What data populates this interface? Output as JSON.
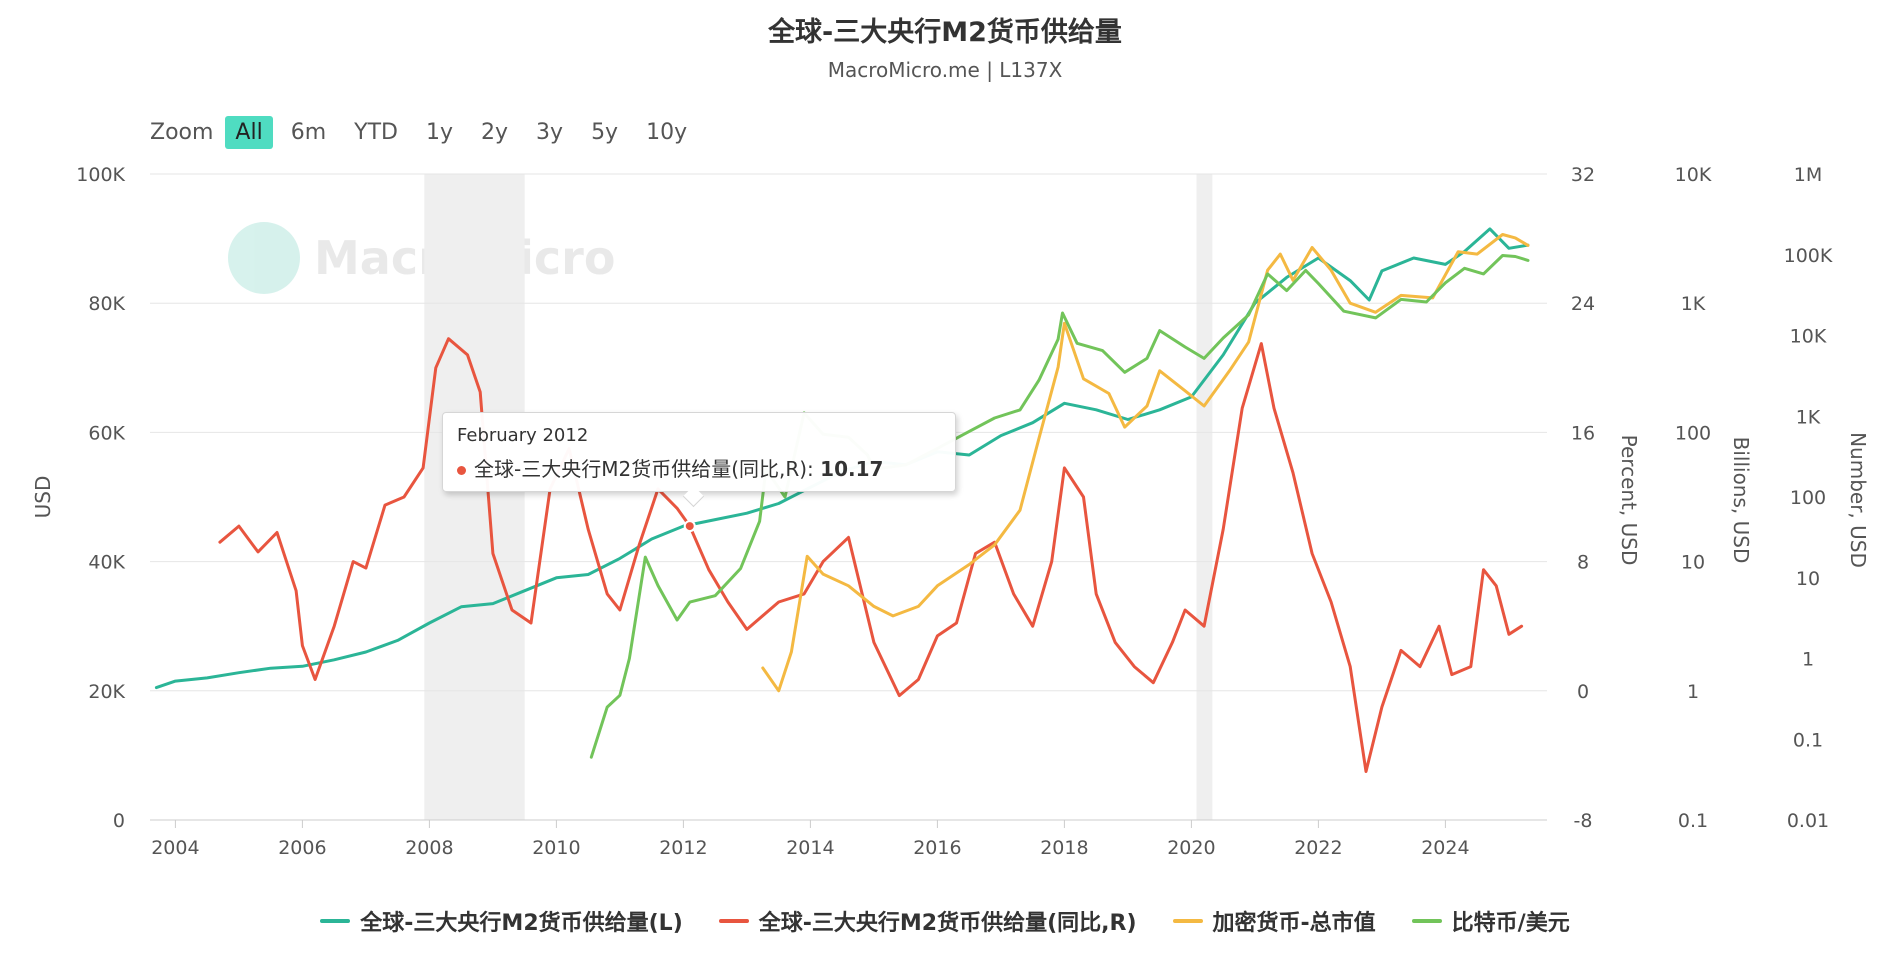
{
  "title": "全球-三大央行M2货币供给量",
  "subtitle": "MacroMicro.me | L137X",
  "watermark": "MacroMicro",
  "zoom": {
    "label": "Zoom",
    "options": [
      "All",
      "6m",
      "YTD",
      "1y",
      "2y",
      "3y",
      "5y",
      "10y"
    ],
    "active": "All"
  },
  "tooltip": {
    "date": "February 2012",
    "series": "全球-三大央行M2货币供给量(同比,R):",
    "value": "10.17"
  },
  "colors": {
    "m2": "#2bb597",
    "yoy": "#e8553f",
    "crypto": "#f4b942",
    "btc": "#72c45a",
    "recession": "#efefef"
  },
  "chart_data": {
    "type": "line",
    "title": "全球-三大央行M2货币供给量",
    "x_ticks": [
      "2004",
      "2006",
      "2008",
      "2010",
      "2012",
      "2014",
      "2016",
      "2018",
      "2020",
      "2022",
      "2024"
    ],
    "xlim": [
      2003.6,
      2025.6
    ],
    "recessions": [
      [
        2007.92,
        2009.5
      ],
      [
        2020.08,
        2020.33
      ]
    ],
    "axes": {
      "left": {
        "label": "USD",
        "range": [
          0,
          100000
        ],
        "ticks": [
          "0",
          "20K",
          "40K",
          "60K",
          "80K",
          "100K"
        ]
      },
      "right1": {
        "label": "Percent, USD",
        "range": [
          -8,
          32
        ],
        "ticks": [
          "-8",
          "0",
          "8",
          "16",
          "24",
          "32"
        ]
      },
      "right2": {
        "label": "Billions, USD",
        "scale": "log",
        "range": [
          0.1,
          10000
        ],
        "ticks": [
          "0.1",
          "1",
          "10",
          "100",
          "1K",
          "10K"
        ]
      },
      "right3": {
        "label": "Number, USD",
        "scale": "log",
        "range": [
          0.01,
          1000000
        ],
        "ticks": [
          "0.01",
          "0.1",
          "1",
          "10",
          "100",
          "1K",
          "10K",
          "100K",
          "1M"
        ]
      }
    },
    "series": [
      {
        "name": "全球-三大央行M2货币供给量(L)",
        "axis": "left",
        "color": "#2bb597",
        "points": [
          [
            2003.7,
            20500
          ],
          [
            2004.0,
            21500
          ],
          [
            2004.5,
            22000
          ],
          [
            2005.0,
            22800
          ],
          [
            2005.5,
            23500
          ],
          [
            2006.0,
            23800
          ],
          [
            2006.5,
            24800
          ],
          [
            2007.0,
            26000
          ],
          [
            2007.5,
            27800
          ],
          [
            2008.0,
            30500
          ],
          [
            2008.5,
            33000
          ],
          [
            2009.0,
            33500
          ],
          [
            2009.5,
            35500
          ],
          [
            2010.0,
            37500
          ],
          [
            2010.5,
            38000
          ],
          [
            2011.0,
            40500
          ],
          [
            2011.5,
            43500
          ],
          [
            2012.0,
            45500
          ],
          [
            2012.5,
            46500
          ],
          [
            2013.0,
            47500
          ],
          [
            2013.5,
            49000
          ],
          [
            2014.0,
            51500
          ],
          [
            2014.5,
            54000
          ],
          [
            2015.0,
            55500
          ],
          [
            2015.5,
            55000
          ],
          [
            2016.0,
            57000
          ],
          [
            2016.5,
            56500
          ],
          [
            2017.0,
            59500
          ],
          [
            2017.5,
            61500
          ],
          [
            2018.0,
            64500
          ],
          [
            2018.5,
            63500
          ],
          [
            2019.0,
            62000
          ],
          [
            2019.5,
            63500
          ],
          [
            2020.0,
            65500
          ],
          [
            2020.5,
            72000
          ],
          [
            2021.0,
            80000
          ],
          [
            2021.5,
            84000
          ],
          [
            2022.0,
            87000
          ],
          [
            2022.5,
            83500
          ],
          [
            2022.8,
            80500
          ],
          [
            2023.0,
            85000
          ],
          [
            2023.5,
            87000
          ],
          [
            2024.0,
            86000
          ],
          [
            2024.3,
            88000
          ],
          [
            2024.7,
            91500
          ],
          [
            2025.0,
            88500
          ],
          [
            2025.3,
            89000
          ]
        ]
      },
      {
        "name": "全球-三大央行M2货币供给量(同比,R)",
        "axis": "right1",
        "color": "#e8553f",
        "points": [
          [
            2004.7,
            9.2
          ],
          [
            2005.0,
            10.2
          ],
          [
            2005.3,
            8.6
          ],
          [
            2005.6,
            9.8
          ],
          [
            2005.9,
            6.2
          ],
          [
            2006.0,
            2.8
          ],
          [
            2006.2,
            0.7
          ],
          [
            2006.5,
            4.0
          ],
          [
            2006.8,
            8.0
          ],
          [
            2007.0,
            7.6
          ],
          [
            2007.3,
            11.5
          ],
          [
            2007.6,
            12.0
          ],
          [
            2007.9,
            13.8
          ],
          [
            2008.1,
            20.0
          ],
          [
            2008.3,
            21.8
          ],
          [
            2008.6,
            20.8
          ],
          [
            2008.8,
            18.5
          ],
          [
            2009.0,
            8.5
          ],
          [
            2009.3,
            5.0
          ],
          [
            2009.6,
            4.2
          ],
          [
            2009.9,
            12.5
          ],
          [
            2010.2,
            15.0
          ],
          [
            2010.5,
            10.0
          ],
          [
            2010.8,
            6.0
          ],
          [
            2011.0,
            5.0
          ],
          [
            2011.3,
            9.0
          ],
          [
            2011.6,
            12.5
          ],
          [
            2011.9,
            11.3
          ],
          [
            2012.1,
            10.2
          ],
          [
            2012.4,
            7.5
          ],
          [
            2012.7,
            5.5
          ],
          [
            2013.0,
            3.8
          ],
          [
            2013.5,
            5.5
          ],
          [
            2013.9,
            6.0
          ],
          [
            2014.2,
            8.0
          ],
          [
            2014.6,
            9.5
          ],
          [
            2015.0,
            3.0
          ],
          [
            2015.4,
            -0.3
          ],
          [
            2015.7,
            0.7
          ],
          [
            2016.0,
            3.4
          ],
          [
            2016.3,
            4.2
          ],
          [
            2016.6,
            8.5
          ],
          [
            2016.9,
            9.2
          ],
          [
            2017.2,
            6.0
          ],
          [
            2017.5,
            4.0
          ],
          [
            2017.8,
            8.0
          ],
          [
            2018.0,
            13.8
          ],
          [
            2018.3,
            12.0
          ],
          [
            2018.5,
            6.0
          ],
          [
            2018.8,
            3.0
          ],
          [
            2019.1,
            1.5
          ],
          [
            2019.4,
            0.5
          ],
          [
            2019.7,
            3.0
          ],
          [
            2019.9,
            5.0
          ],
          [
            2020.2,
            4.0
          ],
          [
            2020.5,
            10.0
          ],
          [
            2020.8,
            17.5
          ],
          [
            2021.1,
            21.5
          ],
          [
            2021.3,
            17.5
          ],
          [
            2021.6,
            13.5
          ],
          [
            2021.9,
            8.5
          ],
          [
            2022.2,
            5.5
          ],
          [
            2022.5,
            1.5
          ],
          [
            2022.75,
            -5.0
          ],
          [
            2023.0,
            -1.0
          ],
          [
            2023.3,
            2.5
          ],
          [
            2023.6,
            1.5
          ],
          [
            2023.9,
            4.0
          ],
          [
            2024.1,
            1.0
          ],
          [
            2024.4,
            1.5
          ],
          [
            2024.6,
            7.5
          ],
          [
            2024.8,
            6.5
          ],
          [
            2025.0,
            3.5
          ],
          [
            2025.2,
            4.0
          ]
        ]
      },
      {
        "name": "加密货币-总市值",
        "axis": "right2",
        "color": "#f4b942",
        "points": [
          [
            2013.25,
            1.5
          ],
          [
            2013.5,
            1.0
          ],
          [
            2013.7,
            2.0
          ],
          [
            2013.95,
            11.0
          ],
          [
            2014.2,
            8.0
          ],
          [
            2014.6,
            6.5
          ],
          [
            2015.0,
            4.5
          ],
          [
            2015.3,
            3.8
          ],
          [
            2015.7,
            4.5
          ],
          [
            2016.0,
            6.5
          ],
          [
            2016.5,
            9.5
          ],
          [
            2016.9,
            13.5
          ],
          [
            2017.3,
            25.0
          ],
          [
            2017.6,
            90.0
          ],
          [
            2017.9,
            320.0
          ],
          [
            2018.0,
            700.0
          ],
          [
            2018.3,
            260.0
          ],
          [
            2018.7,
            200.0
          ],
          [
            2018.95,
            110.0
          ],
          [
            2019.3,
            160.0
          ],
          [
            2019.5,
            300.0
          ],
          [
            2019.9,
            210.0
          ],
          [
            2020.2,
            160.0
          ],
          [
            2020.6,
            300.0
          ],
          [
            2020.9,
            500.0
          ],
          [
            2021.2,
            1800.0
          ],
          [
            2021.4,
            2400.0
          ],
          [
            2021.6,
            1500.0
          ],
          [
            2021.9,
            2700.0
          ],
          [
            2022.2,
            1800.0
          ],
          [
            2022.5,
            1000.0
          ],
          [
            2022.9,
            850.0
          ],
          [
            2023.3,
            1150.0
          ],
          [
            2023.8,
            1100.0
          ],
          [
            2024.2,
            2500.0
          ],
          [
            2024.5,
            2400.0
          ],
          [
            2024.9,
            3400.0
          ],
          [
            2025.1,
            3200.0
          ],
          [
            2025.3,
            2800.0
          ]
        ]
      },
      {
        "name": "比特币/美元",
        "axis": "right3",
        "color": "#72c45a",
        "points": [
          [
            2010.55,
            0.06
          ],
          [
            2010.8,
            0.25
          ],
          [
            2011.0,
            0.35
          ],
          [
            2011.15,
            1.0
          ],
          [
            2011.4,
            18.0
          ],
          [
            2011.6,
            8.0
          ],
          [
            2011.9,
            3.0
          ],
          [
            2012.1,
            5.0
          ],
          [
            2012.5,
            6.0
          ],
          [
            2012.9,
            13.0
          ],
          [
            2013.2,
            50.0
          ],
          [
            2013.3,
            220.0
          ],
          [
            2013.6,
            100.0
          ],
          [
            2013.9,
            1100.0
          ],
          [
            2014.2,
            600.0
          ],
          [
            2014.6,
            550.0
          ],
          [
            2014.9,
            330.0
          ],
          [
            2015.0,
            220.0
          ],
          [
            2015.5,
            250.0
          ],
          [
            2016.0,
            400.0
          ],
          [
            2016.5,
            650.0
          ],
          [
            2016.9,
            950.0
          ],
          [
            2017.3,
            1200.0
          ],
          [
            2017.6,
            2800.0
          ],
          [
            2017.9,
            9000.0
          ],
          [
            2017.97,
            19000.0
          ],
          [
            2018.2,
            8000.0
          ],
          [
            2018.6,
            6500.0
          ],
          [
            2018.95,
            3500.0
          ],
          [
            2019.3,
            5200.0
          ],
          [
            2019.5,
            11500.0
          ],
          [
            2019.9,
            7200.0
          ],
          [
            2020.2,
            5200.0
          ],
          [
            2020.5,
            9300.0
          ],
          [
            2020.9,
            18000.0
          ],
          [
            2021.2,
            58000.0
          ],
          [
            2021.5,
            36000.0
          ],
          [
            2021.8,
            64000.0
          ],
          [
            2022.0,
            44000.0
          ],
          [
            2022.4,
            20000.0
          ],
          [
            2022.9,
            16500.0
          ],
          [
            2023.3,
            28000.0
          ],
          [
            2023.7,
            26000.0
          ],
          [
            2024.0,
            45000.0
          ],
          [
            2024.3,
            68000.0
          ],
          [
            2024.6,
            58000.0
          ],
          [
            2024.9,
            98000.0
          ],
          [
            2025.1,
            95000.0
          ],
          [
            2025.3,
            85000.0
          ]
        ]
      }
    ],
    "legend_position": "bottom-center"
  }
}
